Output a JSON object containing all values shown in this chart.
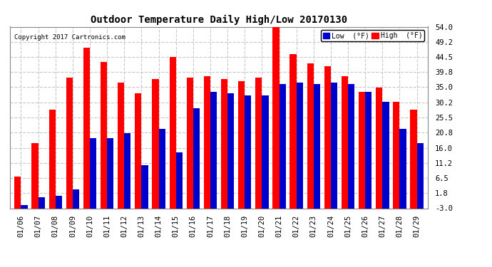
{
  "title": "Outdoor Temperature Daily High/Low 20170130",
  "copyright": "Copyright 2017 Cartronics.com",
  "dates": [
    "01/06",
    "01/07",
    "01/08",
    "01/09",
    "01/10",
    "01/11",
    "01/12",
    "01/13",
    "01/14",
    "01/15",
    "01/16",
    "01/17",
    "01/18",
    "01/19",
    "01/20",
    "01/21",
    "01/22",
    "01/23",
    "01/24",
    "01/25",
    "01/26",
    "01/27",
    "01/28",
    "01/29"
  ],
  "high": [
    7.0,
    17.5,
    28.0,
    38.0,
    47.5,
    43.0,
    36.5,
    33.0,
    37.5,
    44.5,
    38.0,
    38.5,
    37.5,
    37.0,
    38.0,
    54.0,
    45.5,
    42.5,
    41.5,
    38.5,
    33.5,
    35.0,
    30.5,
    28.0
  ],
  "low": [
    -2.0,
    0.5,
    1.0,
    3.0,
    19.0,
    19.0,
    20.5,
    10.5,
    22.0,
    14.5,
    28.5,
    33.5,
    33.0,
    32.5,
    32.5,
    36.0,
    36.5,
    36.0,
    36.5,
    36.0,
    33.5,
    30.5,
    22.0,
    17.5
  ],
  "high_color": "#ff0000",
  "low_color": "#0000cc",
  "background_color": "#ffffff",
  "grid_color": "#c8c8c8",
  "yticks": [
    -3.0,
    1.8,
    6.5,
    11.2,
    16.0,
    20.8,
    25.5,
    30.2,
    35.0,
    39.8,
    44.5,
    49.2,
    54.0
  ],
  "ymin": -3.0,
  "ymax": 54.0,
  "bar_width": 0.38
}
